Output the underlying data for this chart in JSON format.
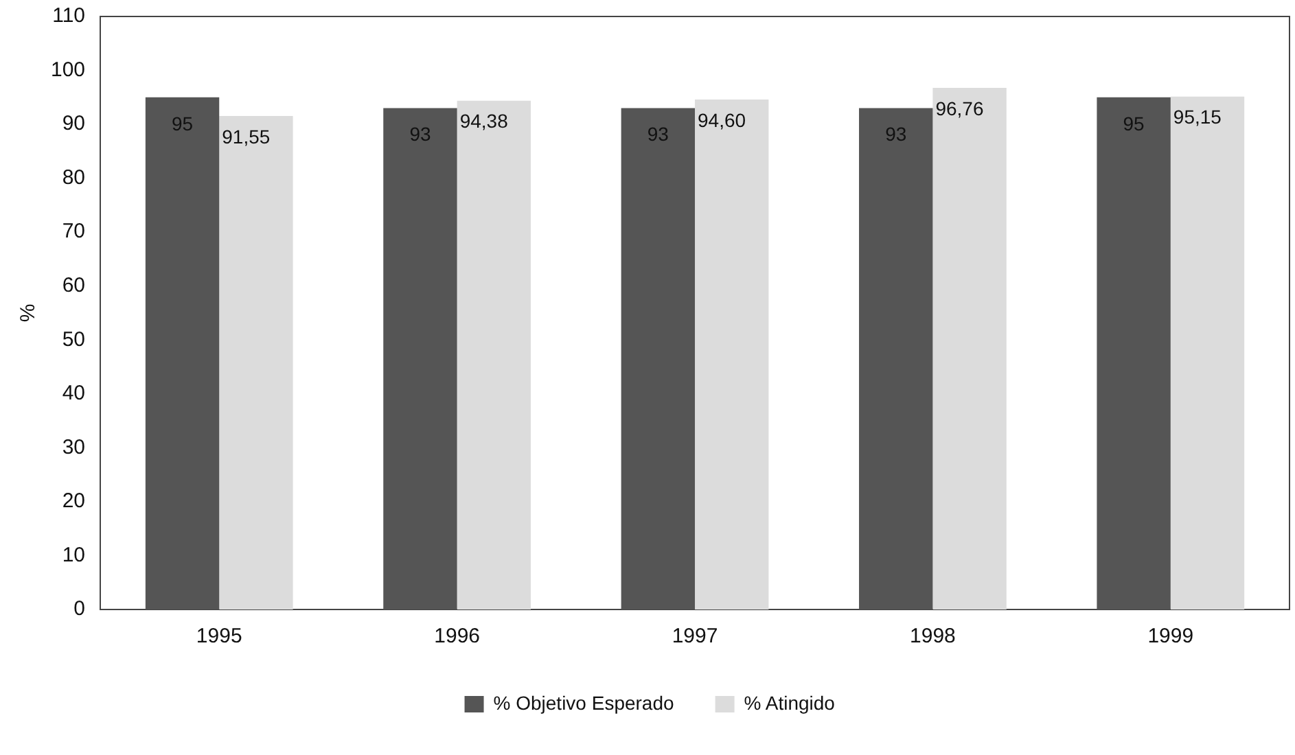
{
  "chart_data": {
    "type": "bar",
    "ylabel": "%",
    "categories": [
      "1995",
      "1996",
      "1997",
      "1998",
      "1999"
    ],
    "series": [
      {
        "name": "% Objetivo Esperado",
        "color": "#555555",
        "values": [
          95,
          93,
          93,
          93,
          95
        ],
        "value_labels": [
          "95",
          "93",
          "93",
          "93",
          "95"
        ]
      },
      {
        "name": "% Atingido",
        "color": "#dcdcdc",
        "values": [
          91.55,
          94.38,
          94.6,
          96.76,
          95.15
        ],
        "value_labels": [
          "91,55",
          "94,38",
          "94,60",
          "96,76",
          "95,15"
        ]
      }
    ],
    "ylim": [
      0,
      110
    ],
    "yticks": [
      0,
      10,
      20,
      30,
      40,
      50,
      60,
      70,
      80,
      90,
      100,
      110
    ],
    "grid": false,
    "legend": "bottom"
  }
}
